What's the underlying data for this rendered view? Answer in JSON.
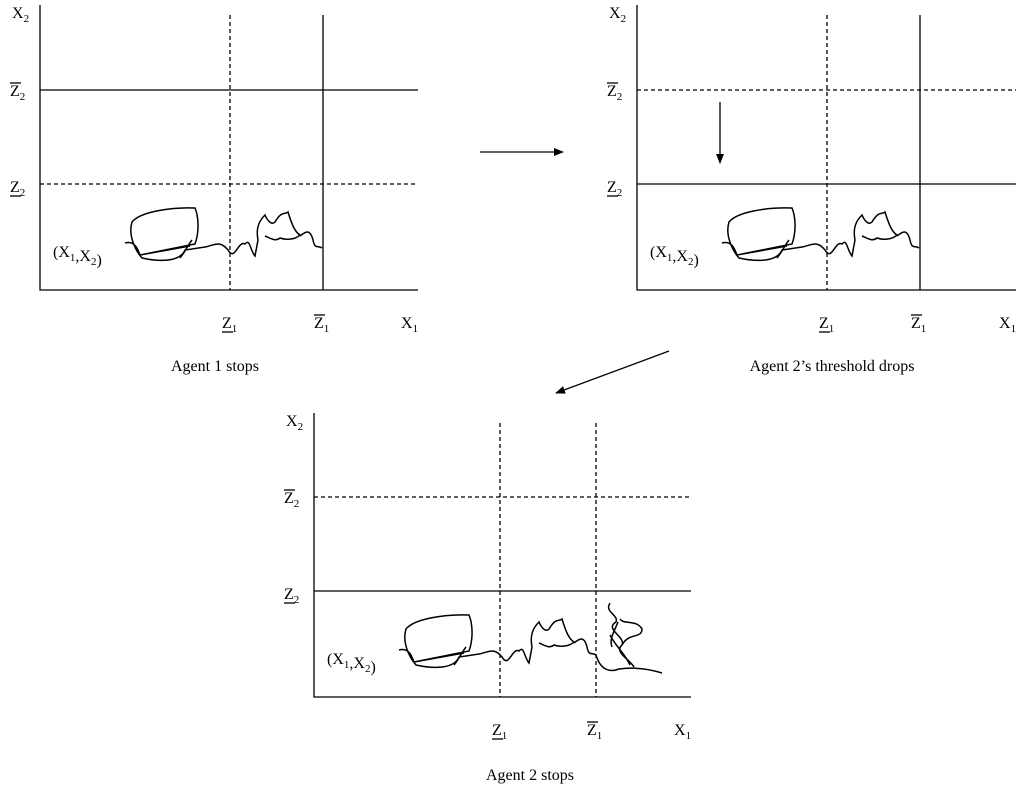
{
  "panels": [
    {
      "caption": "Agent 1 stops",
      "y_axis": [
        {
          "base": "X",
          "sub": "2"
        }
      ],
      "x_axis": [
        {
          "base": "X",
          "sub": "1"
        }
      ],
      "z2_high": [
        {
          "base": "Z",
          "sub": "2"
        }
      ],
      "z2_low": [
        {
          "base": "Z",
          "sub": "2"
        }
      ],
      "z1_low": [
        {
          "base": "Z",
          "sub": "1"
        }
      ],
      "z1_high": [
        {
          "base": "Z",
          "sub": "1"
        }
      ],
      "point": [
        {
          "base": "(X",
          "sub": "1"
        },
        {
          "base": ",X",
          "sub": "2"
        },
        {
          "base": ")"
        }
      ]
    },
    {
      "caption": "Agent 2’s threshold drops",
      "y_axis": [
        {
          "base": "X",
          "sub": "2"
        }
      ],
      "x_axis": [
        {
          "base": "X",
          "sub": "1"
        }
      ],
      "z2_high": [
        {
          "base": "Z",
          "sub": "2"
        }
      ],
      "z2_low": [
        {
          "base": "Z",
          "sub": "2"
        }
      ],
      "z1_low": [
        {
          "base": "Z",
          "sub": "1"
        }
      ],
      "z1_high": [
        {
          "base": "Z",
          "sub": "1"
        }
      ],
      "point": [
        {
          "base": "(X",
          "sub": "1"
        },
        {
          "base": ",X",
          "sub": "2"
        },
        {
          "base": ")"
        }
      ]
    },
    {
      "caption": "Agent 2 stops",
      "y_axis": [
        {
          "base": "X",
          "sub": "2"
        }
      ],
      "x_axis": [
        {
          "base": "X",
          "sub": "1"
        }
      ],
      "z2_high": [
        {
          "base": "Z",
          "sub": "2"
        }
      ],
      "z2_low": [
        {
          "base": "Z",
          "sub": "2"
        }
      ],
      "z1_low": [
        {
          "base": "Z",
          "sub": "1"
        }
      ],
      "z1_high": [
        {
          "base": "Z",
          "sub": "1"
        }
      ],
      "point": [
        {
          "base": "(X",
          "sub": "1"
        },
        {
          "base": ",X",
          "sub": "2"
        },
        {
          "base": ")"
        }
      ]
    }
  ]
}
